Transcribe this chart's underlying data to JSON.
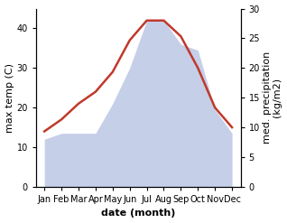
{
  "months": [
    "Jan",
    "Feb",
    "Mar",
    "Apr",
    "May",
    "Jun",
    "Jul",
    "Aug",
    "Sep",
    "Oct",
    "Nov",
    "Dec"
  ],
  "x": [
    1,
    2,
    3,
    4,
    5,
    6,
    7,
    8,
    9,
    10,
    11,
    12
  ],
  "temperature": [
    14,
    17,
    21,
    24,
    29,
    37,
    42,
    42,
    38,
    30,
    20,
    15
  ],
  "precipitation": [
    8,
    9,
    9,
    9,
    14,
    20,
    28,
    28,
    24,
    23,
    13,
    9
  ],
  "temp_color": "#c0392b",
  "precip_color": "#c5cfe8",
  "temp_ylim": [
    0,
    45
  ],
  "precip_ylim": [
    0,
    30
  ],
  "temp_yticks": [
    0,
    10,
    20,
    30,
    40
  ],
  "precip_yticks": [
    0,
    5,
    10,
    15,
    20,
    25,
    30
  ],
  "xlabel": "date (month)",
  "ylabel_left": "max temp (C)",
  "ylabel_right": "med. precipitation\n(kg/m2)",
  "background_color": "#ffffff",
  "line_width": 1.8,
  "font_size_labels": 8,
  "font_size_axis": 7
}
